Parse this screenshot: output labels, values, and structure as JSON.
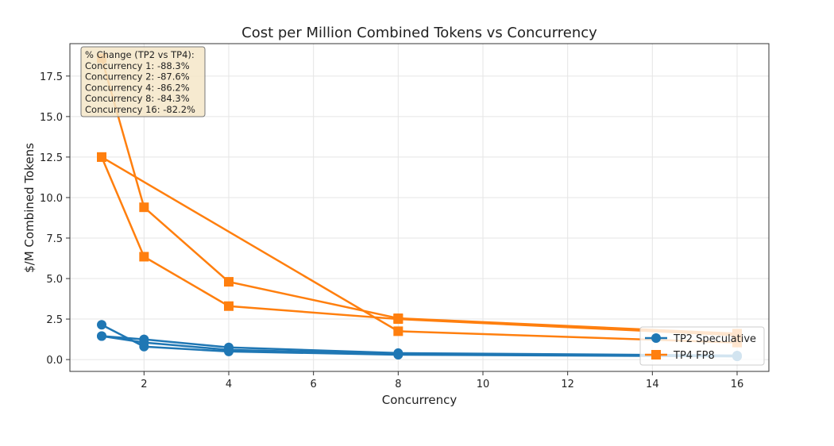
{
  "chart_data": {
    "type": "line",
    "title": "Cost per Million Combined Tokens vs Concurrency",
    "xlabel": "Concurrency",
    "ylabel": "$/M Combined Tokens",
    "xlim": [
      0.25,
      16.75
    ],
    "ylim": [
      -0.73,
      19.5
    ],
    "xticks": [
      2,
      4,
      6,
      8,
      10,
      12,
      14,
      16
    ],
    "yticks": [
      0.0,
      2.5,
      5.0,
      7.5,
      10.0,
      12.5,
      15.0,
      17.5
    ],
    "grid": true,
    "legend_position": "lower-right",
    "series": [
      {
        "name": "TP2 Speculative",
        "color": "#1f77b4",
        "marker": "circle",
        "runs": [
          [
            [
              1,
              2.15
            ],
            [
              2,
              0.8
            ],
            [
              4,
              0.5
            ],
            [
              8,
              0.3
            ],
            [
              16,
              0.2
            ]
          ],
          [
            [
              1,
              1.45
            ],
            [
              2,
              1.25
            ],
            [
              4,
              0.75
            ],
            [
              8,
              0.4
            ],
            [
              16,
              0.25
            ]
          ],
          [
            [
              1,
              1.45
            ],
            [
              2,
              1.05
            ],
            [
              4,
              0.6
            ],
            [
              8,
              0.35
            ],
            [
              16,
              0.2
            ]
          ]
        ]
      },
      {
        "name": "TP4 FP8",
        "color": "#ff7f0e",
        "marker": "square",
        "runs": [
          [
            [
              1,
              18.6
            ],
            [
              2,
              9.4
            ],
            [
              4,
              4.8
            ],
            [
              8,
              2.55
            ],
            [
              16,
              1.6
            ]
          ],
          [
            [
              1,
              12.5
            ],
            [
              2,
              6.35
            ],
            [
              4,
              3.3
            ],
            [
              8,
              2.5
            ],
            [
              16,
              1.5
            ]
          ],
          [
            [
              1,
              12.5
            ],
            [
              8,
              1.75
            ],
            [
              16,
              1.05
            ]
          ]
        ]
      }
    ],
    "annotation": {
      "lines": [
        "% Change (TP2 vs TP4):",
        "Concurrency 1: -88.3%",
        "Concurrency 2: -87.6%",
        "Concurrency 4: -86.2%",
        "Concurrency 8: -84.3%",
        "Concurrency 16: -82.2%"
      ],
      "background": "#f5e6c8"
    }
  }
}
